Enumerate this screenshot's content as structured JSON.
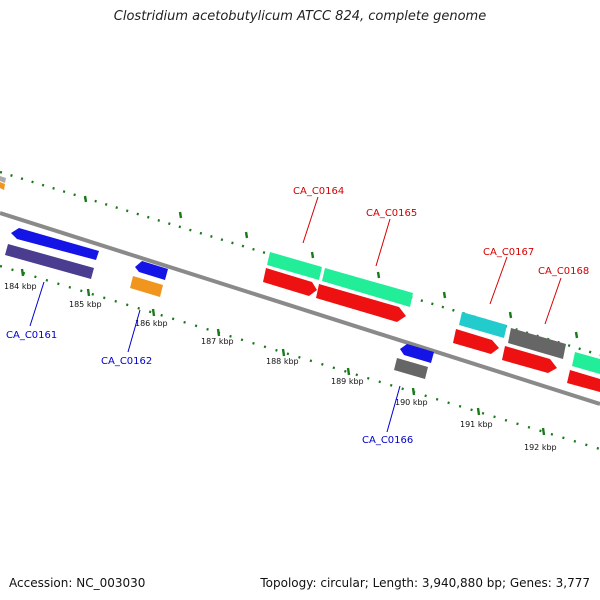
{
  "title": "Clostridium acetobutylicum ATCC 824, complete genome",
  "footer": {
    "accession": "Accession: NC_003030",
    "summary": "Topology: circular; Length: 3,940,880 bp; Genes: 3,777"
  },
  "scale_labels": [
    "184 kbp",
    "185 kbp",
    "186 kbp",
    "187 kbp",
    "188 kbp",
    "189 kbp",
    "190 kbp",
    "191 kbp",
    "192 kbp"
  ],
  "gene_labels": {
    "forward": [
      "CA_C0164",
      "CA_C0165",
      "CA_C0167",
      "CA_C0168"
    ],
    "reverse": [
      "CA_C0161",
      "CA_C0162",
      "CA_C0166"
    ]
  },
  "colors": {
    "forward_label": "#d40000",
    "reverse_label": "#0000cc",
    "backbone": "#808080",
    "ticks": "#1a7a1a",
    "blue_feature": "#1414e6",
    "purple_feature": "#4a3d8f",
    "orange_feature": "#f0961e",
    "green_feature": "#22ee99",
    "red_feature": "#ee1111",
    "cyan_feature": "#22cccc",
    "grey_feature": "#666666"
  }
}
